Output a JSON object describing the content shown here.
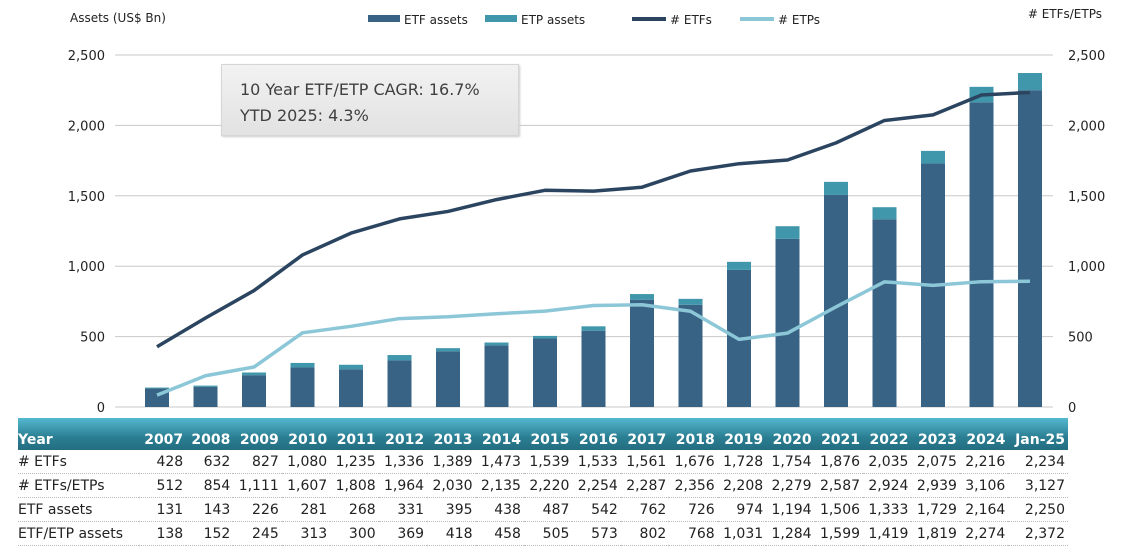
{
  "chart_data": {
    "type": "bar+line",
    "categories": [
      "2007",
      "2008",
      "2009",
      "2010",
      "2011",
      "2012",
      "2013",
      "2014",
      "2015",
      "2016",
      "2017",
      "2018",
      "2019",
      "2020",
      "2021",
      "2022",
      "2023",
      "2024",
      "Jan-25"
    ],
    "left_axis": {
      "label": "Assets (US$ Bn)",
      "range": [
        0,
        2500
      ],
      "ticks": [
        "0",
        "500",
        "1,000",
        "1,500",
        "2,000",
        "2,500"
      ]
    },
    "right_axis": {
      "label": "# ETFs/ETPs",
      "range": [
        0,
        2500
      ],
      "ticks": [
        "0",
        "500",
        "1,000",
        "1,500",
        "2,000",
        "2,500"
      ]
    },
    "grid": true,
    "legend": {
      "position": "top",
      "items": [
        "ETF assets",
        "ETP assets",
        "# ETFs",
        "# ETPs"
      ]
    },
    "colors": {
      "etf_assets": "#386385",
      "etp_assets": "#4096aa",
      "etfs_line": "#2b4560",
      "etps_line": "#8cc7d8"
    },
    "series": [
      {
        "name": "ETF assets",
        "type": "bar",
        "values": [
          131,
          143,
          226,
          281,
          268,
          331,
          395,
          438,
          487,
          542,
          762,
          726,
          974,
          1194,
          1506,
          1333,
          1729,
          2164,
          2250
        ]
      },
      {
        "name": "ETP assets",
        "type": "stacked-bar",
        "values": [
          7,
          9,
          19,
          32,
          32,
          38,
          23,
          20,
          18,
          31,
          40,
          42,
          57,
          90,
          93,
          86,
          90,
          110,
          122
        ]
      },
      {
        "name": "# ETFs",
        "type": "line",
        "values": [
          428,
          632,
          827,
          1080,
          1235,
          1336,
          1389,
          1473,
          1539,
          1533,
          1561,
          1676,
          1728,
          1754,
          1876,
          2035,
          2075,
          2216,
          2234
        ]
      },
      {
        "name": "# ETPs",
        "type": "line",
        "values": [
          84,
          222,
          284,
          527,
          573,
          628,
          641,
          662,
          681,
          721,
          726,
          680,
          480,
          525,
          711,
          889,
          864,
          890,
          893
        ]
      }
    ]
  },
  "callout": {
    "line1": "10 Year ETF/ETP CAGR: 16.7%",
    "line2": "YTD 2025: 4.3%"
  },
  "table": {
    "header": "Year",
    "rows": [
      {
        "label": "# ETFs",
        "values": [
          "428",
          "632",
          "827",
          "1,080",
          "1,235",
          "1,336",
          "1,389",
          "1,473",
          "1,539",
          "1,533",
          "1,561",
          "1,676",
          "1,728",
          "1,754",
          "1,876",
          "2,035",
          "2,075",
          "2,216",
          "2,234"
        ]
      },
      {
        "label": "# ETFs/ETPs",
        "values": [
          "512",
          "854",
          "1,111",
          "1,607",
          "1,808",
          "1,964",
          "2,030",
          "2,135",
          "2,220",
          "2,254",
          "2,287",
          "2,356",
          "2,208",
          "2,279",
          "2,587",
          "2,924",
          "2,939",
          "3,106",
          "3,127"
        ]
      },
      {
        "label": "ETF assets",
        "values": [
          "131",
          "143",
          "226",
          "281",
          "268",
          "331",
          "395",
          "438",
          "487",
          "542",
          "762",
          "726",
          "974",
          "1,194",
          "1,506",
          "1,333",
          "1,729",
          "2,164",
          "2,250"
        ]
      },
      {
        "label": "ETF/ETP assets",
        "values": [
          "138",
          "152",
          "245",
          "313",
          "300",
          "369",
          "418",
          "458",
          "505",
          "573",
          "802",
          "768",
          "1,031",
          "1,284",
          "1,599",
          "1,419",
          "1,819",
          "2,274",
          "2,372"
        ]
      }
    ]
  }
}
